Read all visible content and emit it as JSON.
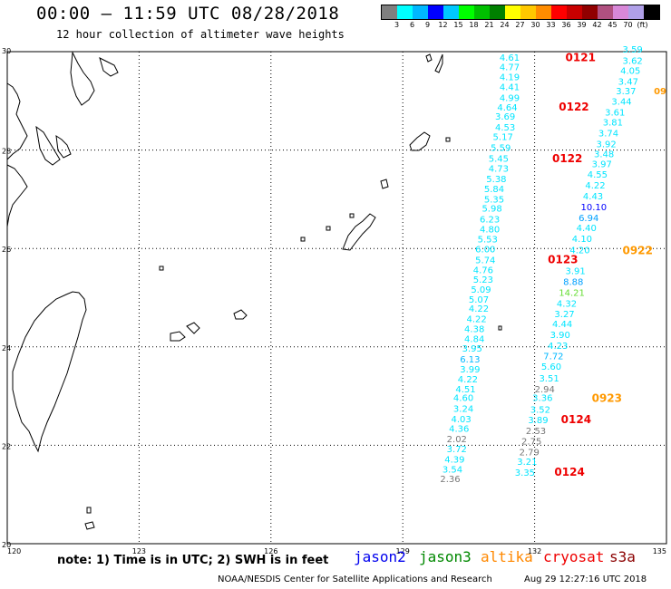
{
  "header": {
    "title": "00:00 – 11:59 UTC 08/28/2018",
    "subtitle": "12 hour collection of altimeter wave heights"
  },
  "scale": {
    "unit": "(ft)",
    "colors": [
      "#7f7f7f",
      "#00ffff",
      "#00b7ff",
      "#0000ff",
      "#00c8ff",
      "#00ff00",
      "#00c000",
      "#008000",
      "#ffff00",
      "#ffc800",
      "#ff8c00",
      "#ff0000",
      "#c80000",
      "#900000",
      "#b05080",
      "#d888d8",
      "#b0a0e8",
      "#000000"
    ],
    "labels": [
      "3",
      "6",
      "9",
      "12",
      "15",
      "18",
      "21",
      "24",
      "27",
      "30",
      "33",
      "36",
      "39",
      "42",
      "45",
      "70"
    ]
  },
  "map": {
    "lon_ticks": [
      "120",
      "123",
      "126",
      "129",
      "132",
      "135"
    ],
    "lat_ticks": [
      "30",
      "28",
      "26",
      "24",
      "22",
      "20"
    ],
    "lon_range": [
      120,
      135
    ],
    "lat_range": [
      20,
      30
    ]
  },
  "wave_labels": [
    {
      "t": "3.59",
      "lon": 134.0,
      "lat": 29.98,
      "c": "#00e5ff"
    },
    {
      "t": "4.61",
      "lon": 131.2,
      "lat": 29.82,
      "c": "#00e5ff"
    },
    {
      "t": "0121",
      "lon": 132.7,
      "lat": 29.81,
      "c": "#ee0000"
    },
    {
      "t": "3.62",
      "lon": 134.0,
      "lat": 29.75,
      "c": "#00e5ff"
    },
    {
      "t": "4.77",
      "lon": 131.2,
      "lat": 29.62,
      "c": "#00e5ff"
    },
    {
      "t": "4.05",
      "lon": 133.95,
      "lat": 29.55,
      "c": "#00e5ff"
    },
    {
      "t": "4.19",
      "lon": 131.2,
      "lat": 29.42,
      "c": "#00e5ff"
    },
    {
      "t": "3.47",
      "lon": 133.9,
      "lat": 29.33,
      "c": "#00e5ff"
    },
    {
      "t": "4.41",
      "lon": 131.2,
      "lat": 29.22,
      "c": "#00e5ff"
    },
    {
      "t": "3.37",
      "lon": 133.85,
      "lat": 29.13,
      "c": "#00e5ff"
    },
    {
      "t": "09",
      "lon": 135.0,
      "lat": 29.13,
      "c": "#ff9900"
    },
    {
      "t": "4.99",
      "lon": 131.2,
      "lat": 29.0,
      "c": "#00e5ff"
    },
    {
      "t": "3.44",
      "lon": 133.75,
      "lat": 28.92,
      "c": "#00e5ff"
    },
    {
      "t": "4.64",
      "lon": 131.15,
      "lat": 28.8,
      "c": "#00e5ff"
    },
    {
      "t": "0122",
      "lon": 132.55,
      "lat": 28.8,
      "c": "#ee0000"
    },
    {
      "t": "3.61",
      "lon": 133.6,
      "lat": 28.7,
      "c": "#00e5ff"
    },
    {
      "t": "3.69",
      "lon": 131.1,
      "lat": 28.62,
      "c": "#00e5ff"
    },
    {
      "t": "3.81",
      "lon": 133.55,
      "lat": 28.5,
      "c": "#00e5ff"
    },
    {
      "t": "4.53",
      "lon": 131.1,
      "lat": 28.4,
      "c": "#00e5ff"
    },
    {
      "t": "3.74",
      "lon": 133.45,
      "lat": 28.28,
      "c": "#00e5ff"
    },
    {
      "t": "5.17",
      "lon": 131.05,
      "lat": 28.2,
      "c": "#00e5ff"
    },
    {
      "t": "3.92",
      "lon": 133.4,
      "lat": 28.06,
      "c": "#00e5ff"
    },
    {
      "t": "5.59",
      "lon": 131.0,
      "lat": 27.98,
      "c": "#00e5ff"
    },
    {
      "t": "3.48",
      "lon": 133.35,
      "lat": 27.85,
      "c": "#00e5ff"
    },
    {
      "t": "5.45",
      "lon": 130.95,
      "lat": 27.76,
      "c": "#00e5ff"
    },
    {
      "t": "0122",
      "lon": 132.4,
      "lat": 27.75,
      "c": "#ee0000"
    },
    {
      "t": "3.97",
      "lon": 133.3,
      "lat": 27.65,
      "c": "#00e5ff"
    },
    {
      "t": "4.73",
      "lon": 130.95,
      "lat": 27.56,
      "c": "#00e5ff"
    },
    {
      "t": "4.55",
      "lon": 133.2,
      "lat": 27.44,
      "c": "#00e5ff"
    },
    {
      "t": "5.38",
      "lon": 130.9,
      "lat": 27.35,
      "c": "#00e5ff"
    },
    {
      "t": "4.22",
      "lon": 133.15,
      "lat": 27.22,
      "c": "#00e5ff"
    },
    {
      "t": "5.84",
      "lon": 130.85,
      "lat": 27.15,
      "c": "#00e5ff"
    },
    {
      "t": "4.43",
      "lon": 133.1,
      "lat": 27.0,
      "c": "#00e5ff"
    },
    {
      "t": "5.35",
      "lon": 130.85,
      "lat": 26.93,
      "c": "#00e5ff"
    },
    {
      "t": "10.10",
      "lon": 133.05,
      "lat": 26.78,
      "c": "#0000ff"
    },
    {
      "t": "5.98",
      "lon": 130.8,
      "lat": 26.75,
      "c": "#00e5ff"
    },
    {
      "t": "6.23",
      "lon": 130.75,
      "lat": 26.53,
      "c": "#00e5ff"
    },
    {
      "t": "6.94",
      "lon": 133.0,
      "lat": 26.56,
      "c": "#00a0ff"
    },
    {
      "t": "4.80",
      "lon": 130.75,
      "lat": 26.33,
      "c": "#00e5ff"
    },
    {
      "t": "4.40",
      "lon": 132.95,
      "lat": 26.35,
      "c": "#00e5ff"
    },
    {
      "t": "5.53",
      "lon": 130.7,
      "lat": 26.12,
      "c": "#00e5ff"
    },
    {
      "t": "4.10",
      "lon": 132.85,
      "lat": 26.13,
      "c": "#00e5ff"
    },
    {
      "t": "6.00",
      "lon": 130.65,
      "lat": 25.92,
      "c": "#00e5ff"
    },
    {
      "t": "4.20",
      "lon": 132.8,
      "lat": 25.9,
      "c": "#00e5ff"
    },
    {
      "t": "0922",
      "lon": 134.0,
      "lat": 25.88,
      "c": "#ff9900"
    },
    {
      "t": "5.74",
      "lon": 130.65,
      "lat": 25.7,
      "c": "#00e5ff"
    },
    {
      "t": "0123",
      "lon": 132.3,
      "lat": 25.7,
      "c": "#ee0000"
    },
    {
      "t": "4.76",
      "lon": 130.6,
      "lat": 25.5,
      "c": "#00e5ff"
    },
    {
      "t": "3.91",
      "lon": 132.7,
      "lat": 25.48,
      "c": "#00e5ff"
    },
    {
      "t": "5.23",
      "lon": 130.6,
      "lat": 25.3,
      "c": "#00e5ff"
    },
    {
      "t": "8.88",
      "lon": 132.65,
      "lat": 25.26,
      "c": "#00a0ff"
    },
    {
      "t": "5.09",
      "lon": 130.55,
      "lat": 25.1,
      "c": "#00e5ff"
    },
    {
      "t": "14.21",
      "lon": 132.55,
      "lat": 25.04,
      "c": "#66dd33"
    },
    {
      "t": "5.07",
      "lon": 130.5,
      "lat": 24.9,
      "c": "#00e5ff"
    },
    {
      "t": "4.32",
      "lon": 132.5,
      "lat": 24.82,
      "c": "#00e5ff"
    },
    {
      "t": "4.22",
      "lon": 130.5,
      "lat": 24.71,
      "c": "#00e5ff"
    },
    {
      "t": "3.27",
      "lon": 132.45,
      "lat": 24.6,
      "c": "#00e5ff"
    },
    {
      "t": "4.22",
      "lon": 130.45,
      "lat": 24.5,
      "c": "#00e5ff"
    },
    {
      "t": "4.44",
      "lon": 132.4,
      "lat": 24.4,
      "c": "#00e5ff"
    },
    {
      "t": "4.38",
      "lon": 130.4,
      "lat": 24.3,
      "c": "#00e5ff"
    },
    {
      "t": "3.90",
      "lon": 132.35,
      "lat": 24.18,
      "c": "#00e5ff"
    },
    {
      "t": "4.84",
      "lon": 130.4,
      "lat": 24.1,
      "c": "#00e5ff"
    },
    {
      "t": "4.23",
      "lon": 132.3,
      "lat": 23.96,
      "c": "#00e5ff"
    },
    {
      "t": "3.95",
      "lon": 130.35,
      "lat": 23.9,
      "c": "#00e5ff"
    },
    {
      "t": "7.72",
      "lon": 132.2,
      "lat": 23.75,
      "c": "#00b7ff"
    },
    {
      "t": "6.13",
      "lon": 130.3,
      "lat": 23.68,
      "c": "#00b7ff"
    },
    {
      "t": "5.60",
      "lon": 132.15,
      "lat": 23.54,
      "c": "#00e5ff"
    },
    {
      "t": "3.99",
      "lon": 130.3,
      "lat": 23.48,
      "c": "#00e5ff"
    },
    {
      "t": "3.51",
      "lon": 132.1,
      "lat": 23.3,
      "c": "#00e5ff"
    },
    {
      "t": "4.22",
      "lon": 130.25,
      "lat": 23.28,
      "c": "#00e5ff"
    },
    {
      "t": "2.94",
      "lon": 132.0,
      "lat": 23.08,
      "c": "#777777"
    },
    {
      "t": "4.51",
      "lon": 130.2,
      "lat": 23.08,
      "c": "#00e5ff"
    },
    {
      "t": "4.60",
      "lon": 130.15,
      "lat": 22.9,
      "c": "#00e5ff"
    },
    {
      "t": "3.36",
      "lon": 131.95,
      "lat": 22.9,
      "c": "#00e5ff"
    },
    {
      "t": "0923",
      "lon": 133.3,
      "lat": 22.88,
      "c": "#ff9900"
    },
    {
      "t": "3.24",
      "lon": 130.15,
      "lat": 22.68,
      "c": "#00e5ff"
    },
    {
      "t": "3.52",
      "lon": 131.9,
      "lat": 22.66,
      "c": "#00e5ff"
    },
    {
      "t": "4.03",
      "lon": 130.1,
      "lat": 22.47,
      "c": "#00e5ff"
    },
    {
      "t": "3.89",
      "lon": 131.85,
      "lat": 22.45,
      "c": "#00e5ff"
    },
    {
      "t": "0124",
      "lon": 132.6,
      "lat": 22.45,
      "c": "#ee0000"
    },
    {
      "t": "4.36",
      "lon": 130.05,
      "lat": 22.27,
      "c": "#00e5ff"
    },
    {
      "t": "2.53",
      "lon": 131.8,
      "lat": 22.23,
      "c": "#777777"
    },
    {
      "t": "2.02",
      "lon": 130.0,
      "lat": 22.06,
      "c": "#777777"
    },
    {
      "t": "2.75",
      "lon": 131.7,
      "lat": 22.02,
      "c": "#777777"
    },
    {
      "t": "3.72",
      "lon": 130.0,
      "lat": 21.86,
      "c": "#00e5ff"
    },
    {
      "t": "2.79",
      "lon": 131.65,
      "lat": 21.8,
      "c": "#777777"
    },
    {
      "t": "4.39",
      "lon": 129.95,
      "lat": 21.65,
      "c": "#00e5ff"
    },
    {
      "t": "3.21",
      "lon": 131.6,
      "lat": 21.6,
      "c": "#00e5ff"
    },
    {
      "t": "3.54",
      "lon": 129.9,
      "lat": 21.45,
      "c": "#00e5ff"
    },
    {
      "t": "0124",
      "lon": 132.45,
      "lat": 21.38,
      "c": "#ee0000"
    },
    {
      "t": "3.35",
      "lon": 131.55,
      "lat": 21.38,
      "c": "#00e5ff"
    },
    {
      "t": "2.36",
      "lon": 129.85,
      "lat": 21.25,
      "c": "#777777"
    }
  ],
  "footer": {
    "note": "note: 1) Time is in UTC; 2) SWH is in feet",
    "satellites": [
      {
        "name": "jason2",
        "color": "#0000ee"
      },
      {
        "name": "jason3",
        "color": "#008800"
      },
      {
        "name": "altika",
        "color": "#ff8800"
      },
      {
        "name": "cryosat",
        "color": "#ee0000"
      },
      {
        "name": "s3a",
        "color": "#8b0000"
      }
    ],
    "credit": "NOAA/NESDIS Center for Satellite Applications and Research",
    "timestamp": "Aug 29 12:27:16 UTC 2018"
  }
}
